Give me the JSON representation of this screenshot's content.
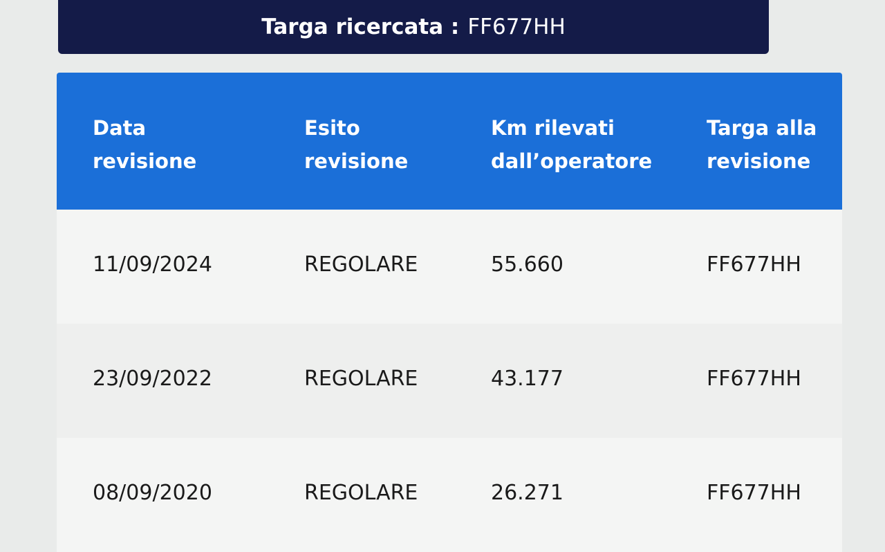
{
  "header": {
    "label": "Targa ricercata :",
    "plate": "FF677HH"
  },
  "table": {
    "colors": {
      "header_bg": "#1b6fd8",
      "title_bg": "#141b48"
    },
    "columns": [
      {
        "line1": "Data",
        "line2": "revisione"
      },
      {
        "line1": "Esito",
        "line2": "revisione"
      },
      {
        "line1": "Km rilevati",
        "line2": "dall’operatore"
      },
      {
        "line1": "Targa alla",
        "line2": "revisione"
      }
    ],
    "rows": [
      {
        "date": "11/09/2024",
        "result": "REGOLARE",
        "km": "55.660",
        "plate": "FF677HH"
      },
      {
        "date": "23/09/2022",
        "result": "REGOLARE",
        "km": "43.177",
        "plate": "FF677HH"
      },
      {
        "date": "08/09/2020",
        "result": "REGOLARE",
        "km": "26.271",
        "plate": "FF677HH"
      }
    ]
  }
}
